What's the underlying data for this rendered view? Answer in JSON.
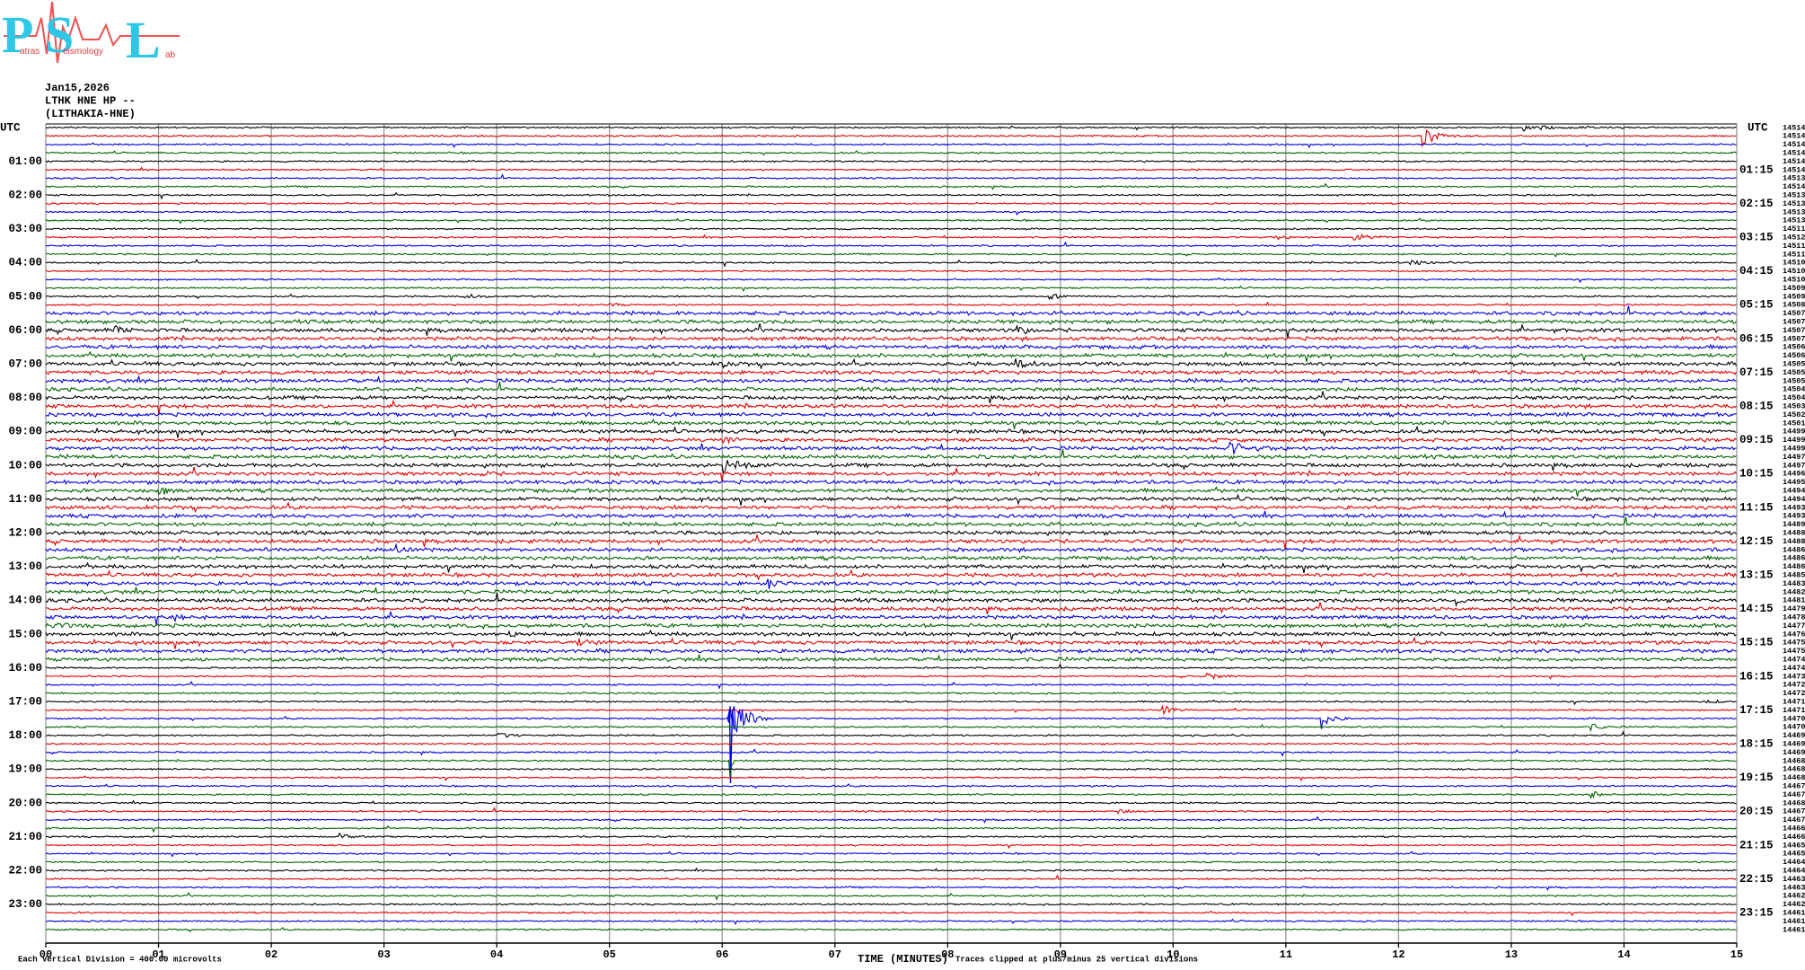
{
  "logo": {
    "letters": [
      "P",
      "S",
      "L"
    ],
    "words": [
      "atras",
      "eismology",
      "ab"
    ]
  },
  "header": {
    "date": "Jan15,2026",
    "station": "LTHK HNE HP --",
    "site": "(LITHAKIA-HNE)"
  },
  "left_axis": {
    "unit": "UTC",
    "labels": [
      "01:00",
      "02:00",
      "03:00",
      "04:00",
      "05:00",
      "06:00",
      "07:00",
      "08:00",
      "09:00",
      "10:00",
      "11:00",
      "12:00",
      "13:00",
      "14:00",
      "15:00",
      "16:00",
      "17:00",
      "18:00",
      "19:00",
      "20:00",
      "21:00",
      "22:00",
      "23:00"
    ]
  },
  "right_axis": {
    "unit": "UTC",
    "labels": [
      "01:15",
      "02:15",
      "03:15",
      "04:15",
      "05:15",
      "06:15",
      "07:15",
      "08:15",
      "09:15",
      "10:15",
      "11:15",
      "12:15",
      "13:15",
      "14:15",
      "15:15",
      "16:15",
      "17:15",
      "18:15",
      "19:15",
      "20:15",
      "21:15",
      "22:15",
      "23:15"
    ]
  },
  "row_values": [
    "14514",
    "14514",
    "14514",
    "14514",
    "14514",
    "14514",
    "14513",
    "14514",
    "14513",
    "14513",
    "14513",
    "14513",
    "14511",
    "14512",
    "14511",
    "14511",
    "14510",
    "14510",
    "14510",
    "14509",
    "14509",
    "14508",
    "14507",
    "14507",
    "14507",
    "14507",
    "14506",
    "14506",
    "14505",
    "14505",
    "14505",
    "14504",
    "14504",
    "14503",
    "14502",
    "14501",
    "14499",
    "14499",
    "14499",
    "14497",
    "14497",
    "14496",
    "14495",
    "14494",
    "14494",
    "14493",
    "14493",
    "14489",
    "14488",
    "14488",
    "14486",
    "14486",
    "14486",
    "14485",
    "14483",
    "14482",
    "14481",
    "14479",
    "14478",
    "14477",
    "14476",
    "14475",
    "14475",
    "14474",
    "14474",
    "14473",
    "14472",
    "14472",
    "14471",
    "14471",
    "14470",
    "14470",
    "14469",
    "14469",
    "14469",
    "14468",
    "14468",
    "14468",
    "14467",
    "14467",
    "14468",
    "14467",
    "14467",
    "14466",
    "14466",
    "14465",
    "14465",
    "14464",
    "14464",
    "14463",
    "14463",
    "14462",
    "14462",
    "14461",
    "14461",
    "14461"
  ],
  "x_axis": {
    "ticks": [
      "00",
      "01",
      "02",
      "03",
      "04",
      "05",
      "06",
      "07",
      "08",
      "09",
      "10",
      "11",
      "12",
      "13",
      "14",
      "15"
    ],
    "title": "TIME (MINUTES)"
  },
  "footer": {
    "scale": "Each Vertical Division =  400.00 microvolts",
    "clip": "Traces clipped at plus/minus 25 vertical divisions"
  }
}
